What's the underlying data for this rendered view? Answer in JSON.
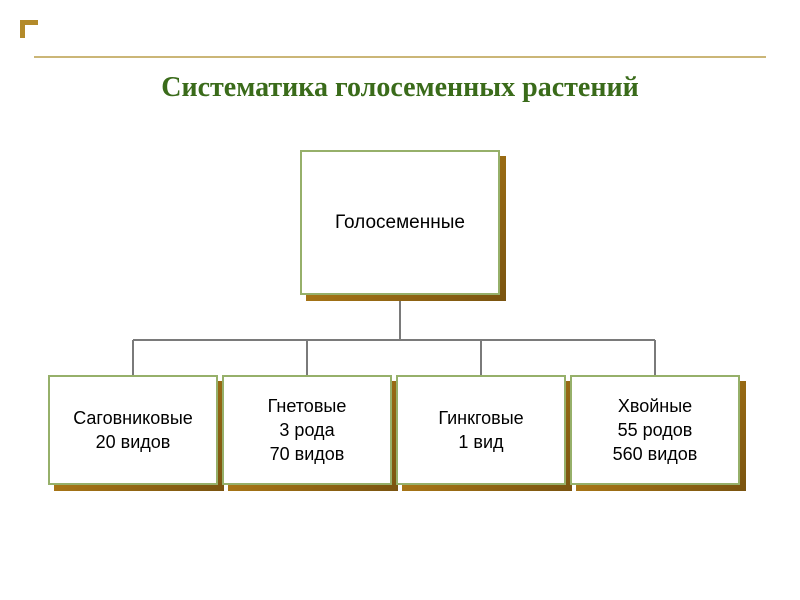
{
  "title": {
    "text": "Систематика голосеменных растений",
    "color": "#3a6b1a",
    "fontsize": 28
  },
  "accent": {
    "corner_color": "#b38a2a",
    "line_color": "#cbb677"
  },
  "diagram": {
    "type": "tree",
    "connector_color": "#7a7a7a",
    "connector_width": 2,
    "root": {
      "label": "Голосеменные",
      "face_bg": "#ffffff",
      "border_color": "#96b06a",
      "shadow_gradient_from": "#c38a1a",
      "shadow_gradient_to": "#7a5410",
      "text_color": "#000000",
      "fontsize": 19
    },
    "children": [
      {
        "lines": [
          "Саговниковые",
          "20 видов"
        ],
        "face_bg": "#ffffff",
        "border_color": "#96b06a",
        "shadow_gradient_from": "#c38a1a",
        "shadow_gradient_to": "#7a5410",
        "text_color": "#000000",
        "fontsize": 18
      },
      {
        "lines": [
          "Гнетовые",
          "3 рода",
          "70 видов"
        ],
        "face_bg": "#ffffff",
        "border_color": "#96b06a",
        "shadow_gradient_from": "#c38a1a",
        "shadow_gradient_to": "#7a5410",
        "text_color": "#000000",
        "fontsize": 18
      },
      {
        "lines": [
          "Гинкговые",
          "1 вид"
        ],
        "face_bg": "#ffffff",
        "border_color": "#96b06a",
        "shadow_gradient_from": "#c38a1a",
        "shadow_gradient_to": "#7a5410",
        "text_color": "#000000",
        "fontsize": 18
      },
      {
        "lines": [
          "Хвойные",
          "55 родов",
          "560 видов"
        ],
        "face_bg": "#ffffff",
        "border_color": "#96b06a",
        "shadow_gradient_from": "#c38a1a",
        "shadow_gradient_to": "#7a5410",
        "text_color": "#000000",
        "fontsize": 18
      }
    ]
  }
}
